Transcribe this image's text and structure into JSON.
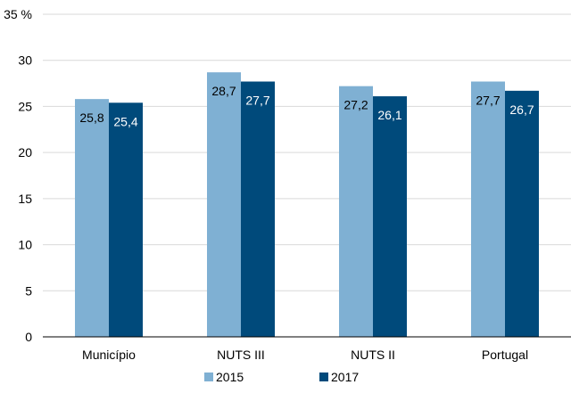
{
  "chart_data": {
    "type": "bar",
    "categories": [
      "Município",
      "NUTS III",
      "NUTS II",
      "Portugal"
    ],
    "series": [
      {
        "name": "2015",
        "values": [
          25.8,
          28.7,
          27.2,
          27.7
        ],
        "labels": [
          "25,8",
          "28,7",
          "27,2",
          "27,7"
        ],
        "color": "#7fb0d3"
      },
      {
        "name": "2017",
        "values": [
          25.4,
          27.7,
          26.1,
          26.7
        ],
        "labels": [
          "25,4",
          "27,7",
          "26,1",
          "26,7"
        ],
        "color": "#004a7b"
      }
    ],
    "ylim": [
      0,
      35
    ],
    "yticks": [
      "0",
      "5",
      "10",
      "15",
      "20",
      "25",
      "30",
      "35 %"
    ],
    "ytick_values": [
      0,
      5,
      10,
      15,
      20,
      25,
      30,
      35
    ],
    "grid": true,
    "grid_color": "#d9d9d9",
    "axis_color": "#000000",
    "legend_position": "bottom"
  }
}
